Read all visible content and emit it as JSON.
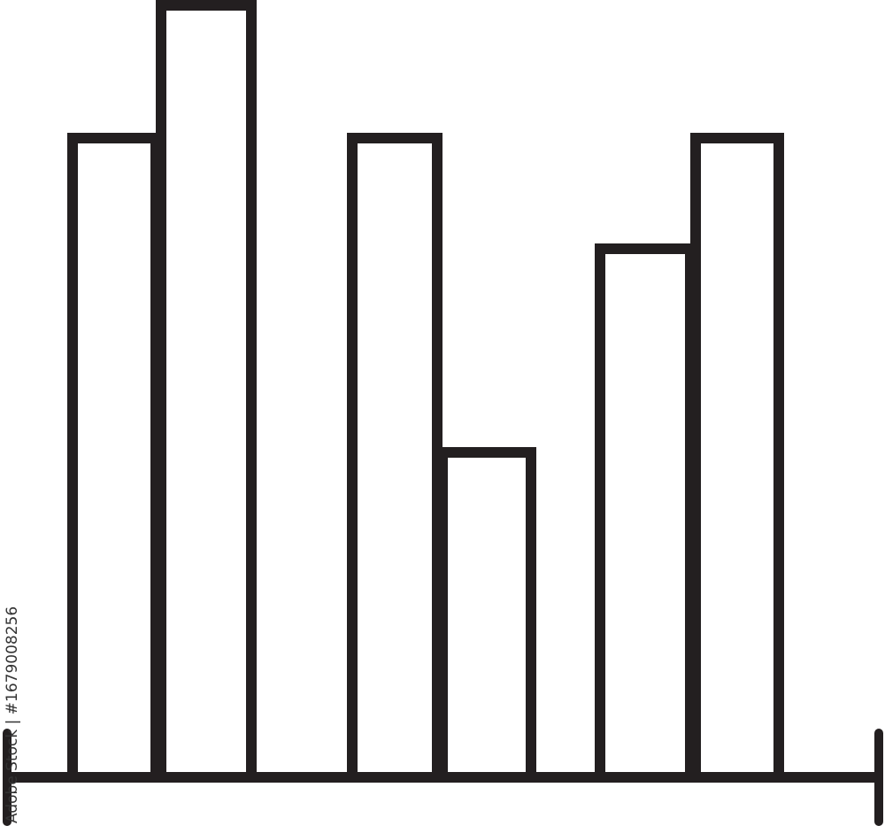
{
  "icon": {
    "name": "bar-chart-icon",
    "stroke_color": "#231f20",
    "bar_count": 6
  },
  "watermark": {
    "text": "Adobe Stock | #1679008256"
  }
}
